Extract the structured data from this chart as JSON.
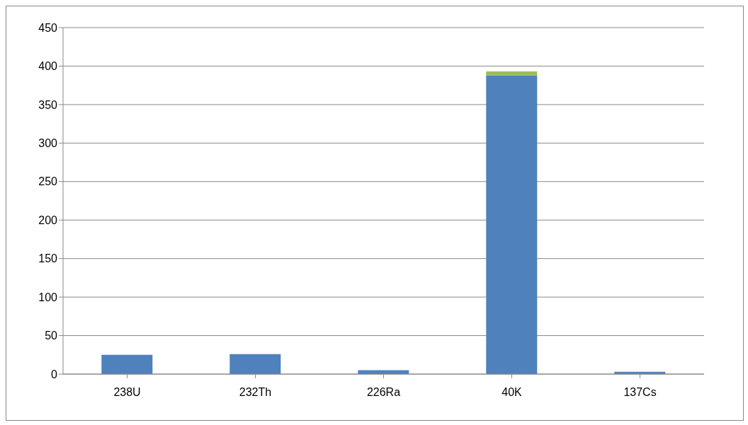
{
  "chart_data": {
    "type": "bar",
    "stacked": true,
    "categories": [
      "238U",
      "232Th",
      "226Ra",
      "40K",
      "137Cs"
    ],
    "series": [
      {
        "color": "#4f81bd",
        "values": [
          25,
          26,
          5,
          388,
          3
        ]
      },
      {
        "color": "#9bbb59",
        "values": [
          0,
          0,
          0,
          5,
          0
        ]
      }
    ],
    "ylim": [
      0,
      450
    ],
    "yticks": [
      0,
      50,
      100,
      150,
      200,
      250,
      300,
      350,
      400,
      450
    ],
    "grid": "y",
    "legend": false
  }
}
